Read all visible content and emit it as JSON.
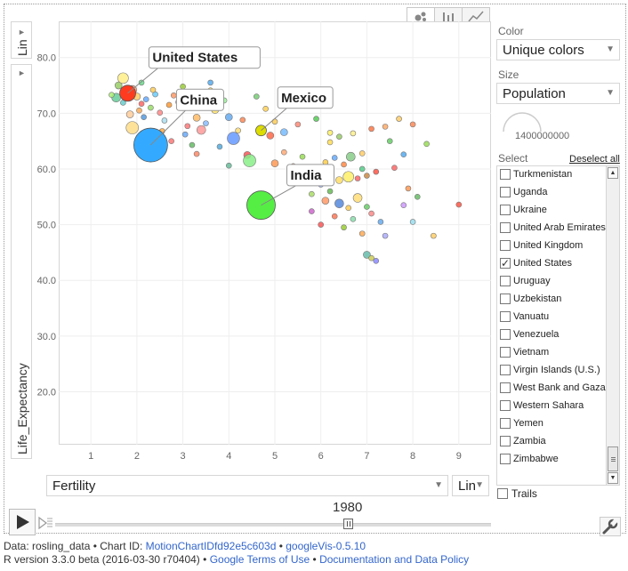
{
  "view_tabs": [
    "bubble-chart-icon",
    "bar-chart-icon",
    "line-chart-icon"
  ],
  "y_scale_label": "Lin",
  "y_axis_label": "Life_Expectancy",
  "x_axis_select": "Fertility",
  "x_scale_label": "Lin",
  "time_value": "1980",
  "trails_label": "Trails",
  "color": {
    "label": "Color",
    "value": "Unique colors"
  },
  "size": {
    "label": "Size",
    "value": "Population",
    "dial_value": "1400000000"
  },
  "select": {
    "label": "Select",
    "deselect_all": "Deselect all",
    "items": [
      {
        "name": "Turkmenistan",
        "checked": false
      },
      {
        "name": "Uganda",
        "checked": false
      },
      {
        "name": "Ukraine",
        "checked": false
      },
      {
        "name": "United Arab Emirates",
        "checked": false
      },
      {
        "name": "United Kingdom",
        "checked": false
      },
      {
        "name": "United States",
        "checked": true
      },
      {
        "name": "Uruguay",
        "checked": false
      },
      {
        "name": "Uzbekistan",
        "checked": false
      },
      {
        "name": "Vanuatu",
        "checked": false
      },
      {
        "name": "Venezuela",
        "checked": false
      },
      {
        "name": "Vietnam",
        "checked": false
      },
      {
        "name": "Virgin Islands (U.S.)",
        "checked": false
      },
      {
        "name": "West Bank and Gaza",
        "checked": false
      },
      {
        "name": "Western Sahara",
        "checked": false
      },
      {
        "name": "Yemen",
        "checked": false
      },
      {
        "name": "Zambia",
        "checked": false
      },
      {
        "name": "Zimbabwe",
        "checked": false
      }
    ]
  },
  "footer": {
    "line1_prefix": "Data: rosling_data • Chart ID: ",
    "chart_id": "MotionChartIDfd92e5c603d",
    "sep1": " • ",
    "googlevis": "googleVis-0.5.10",
    "line2_prefix": "R version 3.3.0 beta (2016-03-30 r70404) • ",
    "terms": "Google Terms of Use",
    "sep2": " • ",
    "policy": "Documentation and Data Policy"
  },
  "chart_data": {
    "type": "scatter",
    "xlabel": "Fertility",
    "ylabel": "Life_Expectancy",
    "xlim": [
      0.3,
      9.7
    ],
    "ylim": [
      10.5,
      86.5
    ],
    "xticks": [
      1,
      2,
      3,
      4,
      5,
      6,
      7,
      8,
      9
    ],
    "yticks": [
      20,
      30,
      40,
      50,
      60,
      70,
      80
    ],
    "labeled": [
      {
        "name": "United States",
        "x": 1.8,
        "y": 73.6,
        "r": 9,
        "color": "#ff3b1f",
        "label_x": 2.3,
        "label_y": 80.0
      },
      {
        "name": "China",
        "x": 2.3,
        "y": 64.3,
        "r": 19,
        "color": "#33aaff",
        "label_x": 2.9,
        "label_y": 72.4
      },
      {
        "name": "Mexico",
        "x": 4.7,
        "y": 66.9,
        "r": 6,
        "color": "#dddd00",
        "label_x": 5.1,
        "label_y": 72.8
      },
      {
        "name": "India",
        "x": 4.7,
        "y": 53.5,
        "r": 16,
        "color": "#55ee44",
        "label_x": 5.3,
        "label_y": 58.9
      }
    ],
    "points": [
      {
        "x": 1.6,
        "y": 75.0,
        "r": 4,
        "c": "#99cc66"
      },
      {
        "x": 1.7,
        "y": 76.3,
        "r": 6,
        "c": "#ffee88"
      },
      {
        "x": 1.55,
        "y": 72.8,
        "r": 5,
        "c": "#66cc99"
      },
      {
        "x": 1.9,
        "y": 74.2,
        "r": 5,
        "c": "#ff9966"
      },
      {
        "x": 2.0,
        "y": 73.0,
        "r": 4,
        "c": "#ffcc66"
      },
      {
        "x": 2.1,
        "y": 71.7,
        "r": 3,
        "c": "#ff6666"
      },
      {
        "x": 2.2,
        "y": 72.5,
        "r": 3,
        "c": "#66aaff"
      },
      {
        "x": 2.05,
        "y": 70.5,
        "r": 3,
        "c": "#ffaa55"
      },
      {
        "x": 1.85,
        "y": 69.8,
        "r": 4,
        "c": "#ffcc99"
      },
      {
        "x": 1.9,
        "y": 67.4,
        "r": 7,
        "c": "#ffdd88"
      },
      {
        "x": 2.3,
        "y": 71.0,
        "r": 3,
        "c": "#99dd66"
      },
      {
        "x": 2.5,
        "y": 70.1,
        "r": 3,
        "c": "#ff8888"
      },
      {
        "x": 2.4,
        "y": 73.4,
        "r": 3,
        "c": "#66ccff"
      },
      {
        "x": 2.7,
        "y": 71.5,
        "r": 3,
        "c": "#ff9933"
      },
      {
        "x": 2.9,
        "y": 72.0,
        "r": 3,
        "c": "#cc99ff"
      },
      {
        "x": 2.1,
        "y": 75.5,
        "r": 3,
        "c": "#66dd88"
      },
      {
        "x": 2.6,
        "y": 68.7,
        "r": 3,
        "c": "#aaddee"
      },
      {
        "x": 3.1,
        "y": 67.7,
        "r": 3,
        "c": "#ff7777"
      },
      {
        "x": 3.3,
        "y": 69.2,
        "r": 4,
        "c": "#ffbb66"
      },
      {
        "x": 3.4,
        "y": 67.0,
        "r": 5,
        "c": "#ff9999"
      },
      {
        "x": 3.5,
        "y": 68.2,
        "r": 3,
        "c": "#88bbff"
      },
      {
        "x": 3.7,
        "y": 70.6,
        "r": 4,
        "c": "#ffe066"
      },
      {
        "x": 3.9,
        "y": 72.3,
        "r": 3,
        "c": "#99ee99"
      },
      {
        "x": 4.0,
        "y": 69.3,
        "r": 4,
        "c": "#66aaee"
      },
      {
        "x": 4.1,
        "y": 65.5,
        "r": 7,
        "c": "#6699ff"
      },
      {
        "x": 4.3,
        "y": 68.8,
        "r": 3,
        "c": "#ff8855"
      },
      {
        "x": 3.6,
        "y": 74.1,
        "r": 3,
        "c": "#ffdd55"
      },
      {
        "x": 3.0,
        "y": 74.8,
        "r": 3,
        "c": "#99cc33"
      },
      {
        "x": 3.2,
        "y": 64.3,
        "r": 3,
        "c": "#66bb66"
      },
      {
        "x": 3.8,
        "y": 64.0,
        "r": 3,
        "c": "#55aadd"
      },
      {
        "x": 4.4,
        "y": 62.5,
        "r": 4,
        "c": "#ff5555"
      },
      {
        "x": 4.45,
        "y": 61.5,
        "r": 7,
        "c": "#88ee88"
      },
      {
        "x": 4.9,
        "y": 66.0,
        "r": 4,
        "c": "#ff6644"
      },
      {
        "x": 5.0,
        "y": 68.5,
        "r": 3,
        "c": "#ffcc55"
      },
      {
        "x": 5.2,
        "y": 66.6,
        "r": 4,
        "c": "#77bbff"
      },
      {
        "x": 5.5,
        "y": 68.0,
        "r": 3,
        "c": "#ff8877"
      },
      {
        "x": 5.9,
        "y": 69.0,
        "r": 3,
        "c": "#55cc55"
      },
      {
        "x": 5.2,
        "y": 63.0,
        "r": 3,
        "c": "#ffaa77"
      },
      {
        "x": 5.6,
        "y": 62.2,
        "r": 3,
        "c": "#99dd55"
      },
      {
        "x": 5.0,
        "y": 61.0,
        "r": 4,
        "c": "#ff9955"
      },
      {
        "x": 5.4,
        "y": 60.5,
        "r": 3,
        "c": "#ff7766"
      },
      {
        "x": 5.7,
        "y": 60.0,
        "r": 3,
        "c": "#6699cc"
      },
      {
        "x": 6.1,
        "y": 61.2,
        "r": 3,
        "c": "#ffcc44"
      },
      {
        "x": 6.3,
        "y": 62.0,
        "r": 3,
        "c": "#66aaff"
      },
      {
        "x": 6.5,
        "y": 60.8,
        "r": 3,
        "c": "#ff8844"
      },
      {
        "x": 6.4,
        "y": 58.0,
        "r": 4,
        "c": "#ffdd66"
      },
      {
        "x": 6.6,
        "y": 58.6,
        "r": 6,
        "c": "#ffee66"
      },
      {
        "x": 6.8,
        "y": 58.3,
        "r": 3,
        "c": "#ff6666"
      },
      {
        "x": 6.9,
        "y": 60.0,
        "r": 3,
        "c": "#55cc88"
      },
      {
        "x": 7.0,
        "y": 58.8,
        "r": 3,
        "c": "#cc8844"
      },
      {
        "x": 7.2,
        "y": 59.5,
        "r": 3,
        "c": "#ff5544"
      },
      {
        "x": 6.2,
        "y": 56.0,
        "r": 3,
        "c": "#66bb55"
      },
      {
        "x": 6.0,
        "y": 57.2,
        "r": 3,
        "c": "#99aaff"
      },
      {
        "x": 5.8,
        "y": 55.5,
        "r": 3,
        "c": "#aadd66"
      },
      {
        "x": 6.1,
        "y": 54.3,
        "r": 4,
        "c": "#ff9966"
      },
      {
        "x": 6.4,
        "y": 53.8,
        "r": 5,
        "c": "#5588dd"
      },
      {
        "x": 6.6,
        "y": 53.0,
        "r": 3,
        "c": "#ffcc55"
      },
      {
        "x": 6.8,
        "y": 54.8,
        "r": 5,
        "c": "#ffdd77"
      },
      {
        "x": 7.0,
        "y": 53.2,
        "r": 3,
        "c": "#66cc66"
      },
      {
        "x": 6.3,
        "y": 51.5,
        "r": 3,
        "c": "#ff7755"
      },
      {
        "x": 6.7,
        "y": 51.0,
        "r": 3,
        "c": "#88ddaa"
      },
      {
        "x": 7.1,
        "y": 52.0,
        "r": 3,
        "c": "#ff8888"
      },
      {
        "x": 6.0,
        "y": 50.0,
        "r": 3,
        "c": "#ff5555"
      },
      {
        "x": 5.8,
        "y": 52.4,
        "r": 3,
        "c": "#cc66cc"
      },
      {
        "x": 6.5,
        "y": 49.5,
        "r": 3,
        "c": "#99cc33"
      },
      {
        "x": 7.3,
        "y": 50.5,
        "r": 3,
        "c": "#66aaee"
      },
      {
        "x": 6.9,
        "y": 48.4,
        "r": 3,
        "c": "#ffaa55"
      },
      {
        "x": 7.4,
        "y": 48.0,
        "r": 3,
        "c": "#aaaaff"
      },
      {
        "x": 7.0,
        "y": 44.6,
        "r": 4,
        "c": "#66bbaa"
      },
      {
        "x": 7.1,
        "y": 44.0,
        "r": 3,
        "c": "#cccc55"
      },
      {
        "x": 7.2,
        "y": 43.5,
        "r": 3,
        "c": "#8888ff"
      },
      {
        "x": 6.2,
        "y": 64.8,
        "r": 3,
        "c": "#ffdd55"
      },
      {
        "x": 6.4,
        "y": 65.8,
        "r": 3,
        "c": "#99cc66"
      },
      {
        "x": 6.7,
        "y": 66.4,
        "r": 3,
        "c": "#ffee88"
      },
      {
        "x": 7.1,
        "y": 67.2,
        "r": 3,
        "c": "#ff7744"
      },
      {
        "x": 7.5,
        "y": 65.0,
        "r": 3,
        "c": "#66cc66"
      },
      {
        "x": 7.7,
        "y": 69.0,
        "r": 3,
        "c": "#ffcc66"
      },
      {
        "x": 8.0,
        "y": 68.0,
        "r": 3,
        "c": "#ff8855"
      },
      {
        "x": 8.3,
        "y": 64.5,
        "r": 3,
        "c": "#99dd55"
      },
      {
        "x": 7.4,
        "y": 67.6,
        "r": 3,
        "c": "#ffaa66"
      },
      {
        "x": 7.6,
        "y": 60.2,
        "r": 3,
        "c": "#ff6666"
      },
      {
        "x": 7.8,
        "y": 62.6,
        "r": 3,
        "c": "#55aaee"
      },
      {
        "x": 7.9,
        "y": 56.5,
        "r": 3,
        "c": "#ff9955"
      },
      {
        "x": 8.1,
        "y": 55.0,
        "r": 3,
        "c": "#66bb66"
      },
      {
        "x": 9.0,
        "y": 53.6,
        "r": 3,
        "c": "#ff5544"
      },
      {
        "x": 8.45,
        "y": 48.0,
        "r": 3,
        "c": "#ffcc66"
      },
      {
        "x": 7.8,
        "y": 53.5,
        "r": 3,
        "c": "#cc99ff"
      },
      {
        "x": 8.0,
        "y": 50.5,
        "r": 3,
        "c": "#99ddee"
      },
      {
        "x": 5.5,
        "y": 72.0,
        "r": 3,
        "c": "#ff8877"
      },
      {
        "x": 4.8,
        "y": 70.8,
        "r": 3,
        "c": "#ffd055"
      },
      {
        "x": 4.6,
        "y": 73.0,
        "r": 3,
        "c": "#77cc77"
      },
      {
        "x": 3.6,
        "y": 75.5,
        "r": 3,
        "c": "#55aaee"
      },
      {
        "x": 2.8,
        "y": 73.2,
        "r": 3,
        "c": "#ff9966"
      },
      {
        "x": 2.35,
        "y": 74.2,
        "r": 3,
        "c": "#ffcc55"
      },
      {
        "x": 1.45,
        "y": 73.3,
        "r": 3,
        "c": "#aaee77"
      },
      {
        "x": 1.7,
        "y": 71.9,
        "r": 3,
        "c": "#66cccc"
      },
      {
        "x": 2.55,
        "y": 66.8,
        "r": 3,
        "c": "#ffaa44"
      },
      {
        "x": 2.75,
        "y": 65.0,
        "r": 3,
        "c": "#ff7777"
      },
      {
        "x": 3.05,
        "y": 66.2,
        "r": 3,
        "c": "#66aaff"
      },
      {
        "x": 4.2,
        "y": 66.9,
        "r": 3,
        "c": "#ffdd77"
      },
      {
        "x": 3.3,
        "y": 62.7,
        "r": 3,
        "c": "#ff8866"
      },
      {
        "x": 4.0,
        "y": 60.6,
        "r": 3,
        "c": "#66bb99"
      },
      {
        "x": 5.9,
        "y": 58.7,
        "r": 3,
        "c": "#ffaa55"
      },
      {
        "x": 6.9,
        "y": 62.8,
        "r": 3,
        "c": "#ffcc66"
      },
      {
        "x": 6.65,
        "y": 62.2,
        "r": 5,
        "c": "#88cc88"
      },
      {
        "x": 6.2,
        "y": 66.5,
        "r": 3,
        "c": "#ffee66"
      },
      {
        "x": 2.5,
        "y": 64.3,
        "r": 3,
        "c": "#99dd66"
      },
      {
        "x": 2.15,
        "y": 69.3,
        "r": 3,
        "c": "#5599dd"
      }
    ]
  }
}
